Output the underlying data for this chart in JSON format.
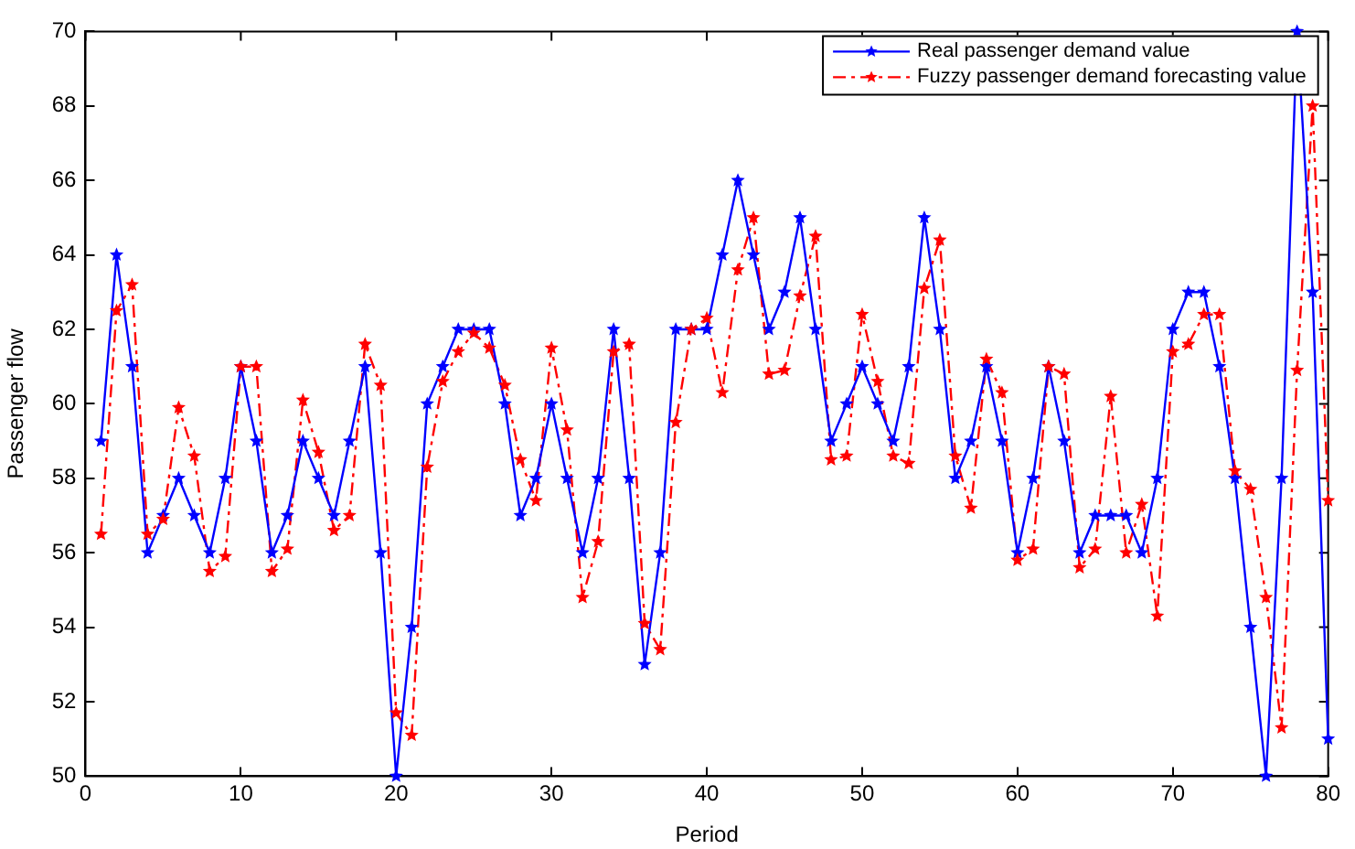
{
  "chart_data": {
    "type": "line",
    "xlabel": "Period",
    "ylabel": "Passenger flow",
    "x": [
      1,
      2,
      3,
      4,
      5,
      6,
      7,
      8,
      9,
      10,
      11,
      12,
      13,
      14,
      15,
      16,
      17,
      18,
      19,
      20,
      21,
      22,
      23,
      24,
      25,
      26,
      27,
      28,
      29,
      30,
      31,
      32,
      33,
      34,
      35,
      36,
      37,
      38,
      39,
      40,
      41,
      42,
      43,
      44,
      45,
      46,
      47,
      48,
      49,
      50,
      51,
      52,
      53,
      54,
      55,
      56,
      57,
      58,
      59,
      60,
      61,
      62,
      63,
      64,
      65,
      66,
      67,
      68,
      69,
      70,
      71,
      72,
      73,
      74,
      75,
      76,
      77,
      78,
      79,
      80
    ],
    "series": [
      {
        "name": "Real passenger demand value",
        "color": "#0000ff",
        "line_style": "solid",
        "values": [
          59,
          64,
          61,
          56,
          57,
          58,
          57,
          56,
          58,
          61,
          59,
          56,
          57,
          59,
          58,
          57,
          59,
          61,
          56,
          50,
          54,
          60,
          61,
          62,
          62,
          62,
          60,
          57,
          58,
          60,
          58,
          56,
          58,
          62,
          58,
          53,
          56,
          62,
          62,
          62,
          64,
          66,
          64,
          62,
          63,
          65,
          62,
          59,
          60,
          61,
          60,
          59,
          61,
          65,
          62,
          58,
          59,
          61,
          59,
          56,
          58,
          61,
          59,
          56,
          57,
          57,
          57,
          56,
          58,
          62,
          63,
          63,
          61,
          58,
          54,
          50,
          58,
          70,
          63,
          51
        ]
      },
      {
        "name": "Fuzzy passenger demand forecasting value",
        "color": "#ff0000",
        "line_style": "dashed",
        "values": [
          56.5,
          62.5,
          63.2,
          56.5,
          56.9,
          59.9,
          58.6,
          55.5,
          55.9,
          61.0,
          61.0,
          55.5,
          56.1,
          60.1,
          58.7,
          56.6,
          57.0,
          61.6,
          60.5,
          51.7,
          51.1,
          58.3,
          60.6,
          61.4,
          61.9,
          61.5,
          60.5,
          58.5,
          57.4,
          61.5,
          59.3,
          54.8,
          56.3,
          61.4,
          61.6,
          54.1,
          53.4,
          59.5,
          62.0,
          62.3,
          60.3,
          63.6,
          65.0,
          60.8,
          60.9,
          62.9,
          64.5,
          58.5,
          58.6,
          62.4,
          60.6,
          58.6,
          58.4,
          63.1,
          64.4,
          58.6,
          57.2,
          61.2,
          60.3,
          55.8,
          56.1,
          61.0,
          60.8,
          55.6,
          56.1,
          60.2,
          56.0,
          57.3,
          54.3,
          61.4,
          61.6,
          62.4,
          62.4,
          58.2,
          57.7,
          54.8,
          51.3,
          60.9,
          68.0,
          57.4
        ]
      }
    ],
    "xlim": [
      0,
      80
    ],
    "xticks": [
      0,
      10,
      20,
      30,
      40,
      50,
      60,
      70,
      80
    ],
    "ylim": [
      50,
      70
    ],
    "yticks": [
      50,
      52,
      54,
      56,
      58,
      60,
      62,
      64,
      66,
      68,
      70
    ],
    "grid": false,
    "legend": "top right",
    "marker": "star"
  }
}
